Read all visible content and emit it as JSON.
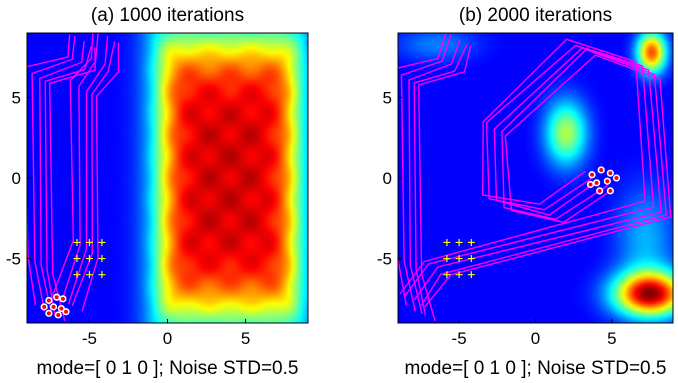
{
  "chart_data": [
    {
      "type": "heatmap",
      "panel": "a",
      "title": "(a) 1000 iterations",
      "xlabel": "mode=[ 0 1 0 ]; Noise STD=0.5",
      "ylabel": "",
      "xlim": [
        -9,
        9
      ],
      "ylim": [
        -9,
        9
      ],
      "xticks": [
        -5,
        0,
        5
      ],
      "yticks": [
        -5,
        0,
        5
      ],
      "colormap": "jet",
      "hot_regions": [
        {
          "shape": "rounded-rect",
          "x_range": [
            -0.5,
            8.3
          ],
          "y_range": [
            -8.6,
            8.6
          ],
          "level": 0.92,
          "ripple": true
        }
      ],
      "trajectories": [
        {
          "color": "#ff00ff",
          "count": 5,
          "path": [
            [
              -5.4,
              8.5
            ],
            [
              -5.6,
              7.1
            ],
            [
              -8.3,
              6.3
            ],
            [
              -8.2,
              -5.5
            ],
            [
              -7.5,
              -8.4
            ]
          ]
        },
        {
          "color": "#ff00ff",
          "count": 5,
          "path": [
            [
              -3.9,
              8.8
            ],
            [
              -4.1,
              7.0
            ],
            [
              -5.3,
              5.5
            ],
            [
              -5.3,
              -4.5
            ],
            [
              -6.4,
              -7.8
            ]
          ]
        }
      ],
      "targets": {
        "marker": "+",
        "color": "#ffff00",
        "points": [
          [
            -5.8,
            -4.0
          ],
          [
            -5.0,
            -4.0
          ],
          [
            -4.2,
            -4.0
          ],
          [
            -5.8,
            -5.0
          ],
          [
            -5.0,
            -5.0
          ],
          [
            -4.2,
            -5.0
          ],
          [
            -5.8,
            -6.0
          ],
          [
            -5.0,
            -6.0
          ],
          [
            -4.2,
            -6.0
          ]
        ]
      },
      "agents": {
        "marker": "o",
        "color": "#ff0000",
        "edge": "#ffffff",
        "points": [
          [
            -7.6,
            -7.6
          ],
          [
            -7.1,
            -7.4
          ],
          [
            -6.7,
            -7.5
          ],
          [
            -7.3,
            -8.0
          ],
          [
            -6.8,
            -8.1
          ],
          [
            -7.6,
            -8.4
          ],
          [
            -7.0,
            -8.5
          ],
          [
            -6.5,
            -8.3
          ],
          [
            -7.9,
            -8.0
          ]
        ]
      }
    },
    {
      "type": "heatmap",
      "panel": "b",
      "title": "(b) 2000 iterations",
      "xlabel": "mode=[ 0 1 0 ]; Noise STD=0.5",
      "ylabel": "",
      "xlim": [
        -9,
        9
      ],
      "ylim": [
        -9,
        9
      ],
      "xticks": [
        -5,
        0,
        5
      ],
      "yticks": [
        -5,
        0,
        5
      ],
      "colormap": "jet",
      "hot_regions": [
        {
          "shape": "blob",
          "center": [
            7.5,
            -7.2
          ],
          "radii": [
            2.2,
            1.3
          ],
          "level": 0.95
        },
        {
          "shape": "blob",
          "center": [
            7.6,
            7.8
          ],
          "radii": [
            0.9,
            1.2
          ],
          "level": 0.8
        },
        {
          "shape": "blob",
          "center": [
            2.0,
            2.8
          ],
          "radii": [
            1.3,
            1.9
          ],
          "level": 0.55
        },
        {
          "shape": "blob",
          "center": [
            7.2,
            -3.8
          ],
          "radii": [
            1.8,
            3.0
          ],
          "level": 0.3
        },
        {
          "shape": "blob",
          "center": [
            -6.5,
            8.3
          ],
          "radii": [
            2.5,
            1.0
          ],
          "level": 0.25
        }
      ],
      "trajectories": [
        {
          "color": "#ff00ff",
          "count": 5,
          "path": [
            [
              -5.0,
              8.6
            ],
            [
              -5.6,
              7.0
            ],
            [
              -8.4,
              6.2
            ],
            [
              -8.3,
              -5.5
            ],
            [
              -7.5,
              -8.4
            ]
          ]
        },
        {
          "color": "#ff00ff",
          "count": 5,
          "path": [
            [
              -8.0,
              -7.6
            ],
            [
              -6.5,
              -5.6
            ],
            [
              8.1,
              -2.0
            ],
            [
              7.3,
              6.6
            ],
            [
              3.0,
              8.1
            ],
            [
              -2.7,
              3.1
            ],
            [
              -2.5,
              -1.5
            ],
            [
              1.0,
              -2.2
            ],
            [
              4.2,
              -0.2
            ]
          ]
        }
      ],
      "targets": {
        "marker": "+",
        "color": "#ffff00",
        "points": [
          [
            -5.8,
            -4.0
          ],
          [
            -5.0,
            -4.0
          ],
          [
            -4.2,
            -4.0
          ],
          [
            -5.8,
            -5.0
          ],
          [
            -5.0,
            -5.0
          ],
          [
            -4.2,
            -5.0
          ],
          [
            -5.8,
            -6.0
          ],
          [
            -5.0,
            -6.0
          ],
          [
            -4.2,
            -6.0
          ]
        ]
      },
      "agents": {
        "marker": "o",
        "color": "#ff0000",
        "edge": "#ffffff",
        "points": [
          [
            3.7,
            0.2
          ],
          [
            4.3,
            0.5
          ],
          [
            4.9,
            0.3
          ],
          [
            4.0,
            -0.3
          ],
          [
            4.7,
            -0.2
          ],
          [
            5.3,
            0.0
          ],
          [
            4.2,
            -0.8
          ],
          [
            4.9,
            -0.8
          ],
          [
            3.6,
            -0.4
          ]
        ]
      }
    }
  ]
}
